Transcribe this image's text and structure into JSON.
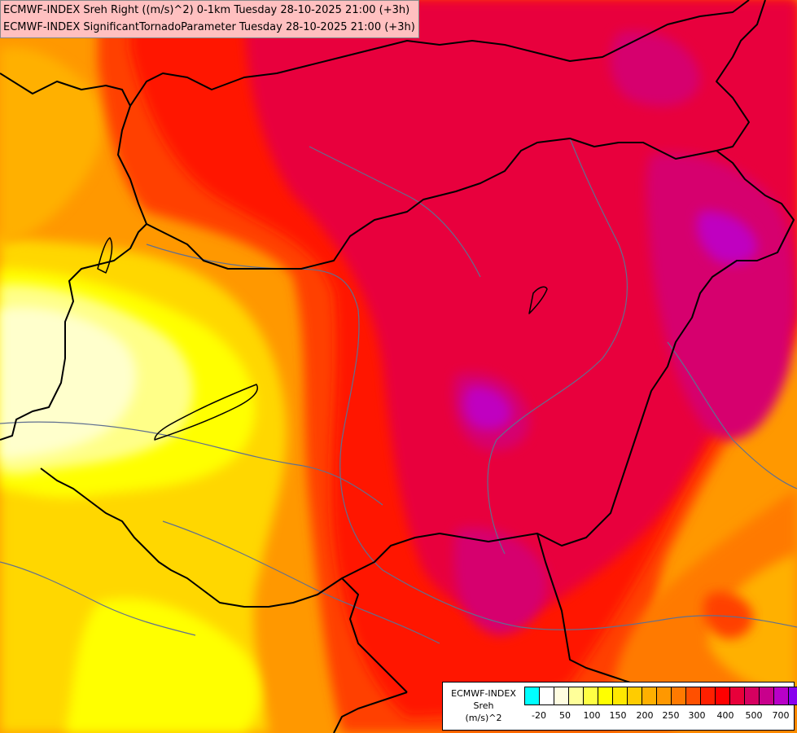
{
  "title": {
    "line1": "ECMWF-INDEX Sreh Right ((m/s)^2) 0-1km Tuesday 28-10-2025 21:00 (+3h)",
    "line2": "ECMWF-INDEX SignificantTornadoParameter Tuesday 28-10-2025 21:00 (+3h)"
  },
  "legend": {
    "label_line1": "ECMWF-INDEX",
    "label_line2": "Sreh",
    "label_line3": "(m/s)^2",
    "swatch_colors": [
      "#00ffff",
      "#ffffff",
      "#fffde0",
      "#ffff99",
      "#ffff44",
      "#ffff00",
      "#ffe800",
      "#ffcc00",
      "#ffb000",
      "#ff9800",
      "#ff7a00",
      "#ff5000",
      "#ff2000",
      "#ff0000",
      "#e8003a",
      "#d60060",
      "#c8008c",
      "#b800c8",
      "#8800ee",
      "#5a00d8",
      "#3300b0",
      "#14008a"
    ],
    "tick_labels": [
      "-20",
      "50",
      "100",
      "150",
      "200",
      "250",
      "300",
      "400",
      "500",
      "700"
    ]
  },
  "colors": {
    "yellow_pale": "#ffffcc",
    "yellow_light": "#ffff88",
    "yellow": "#ffff00",
    "yellow_orange": "#ffd700",
    "orange_light": "#ffb000",
    "orange": "#ff9800",
    "orange_dark": "#ff7a00",
    "red_orange": "#ff4000",
    "red": "#ff1400",
    "crimson": "#e8003c",
    "magenta": "#d6006e",
    "purple": "#c000c0",
    "border": "#000000",
    "river": "#607090"
  }
}
